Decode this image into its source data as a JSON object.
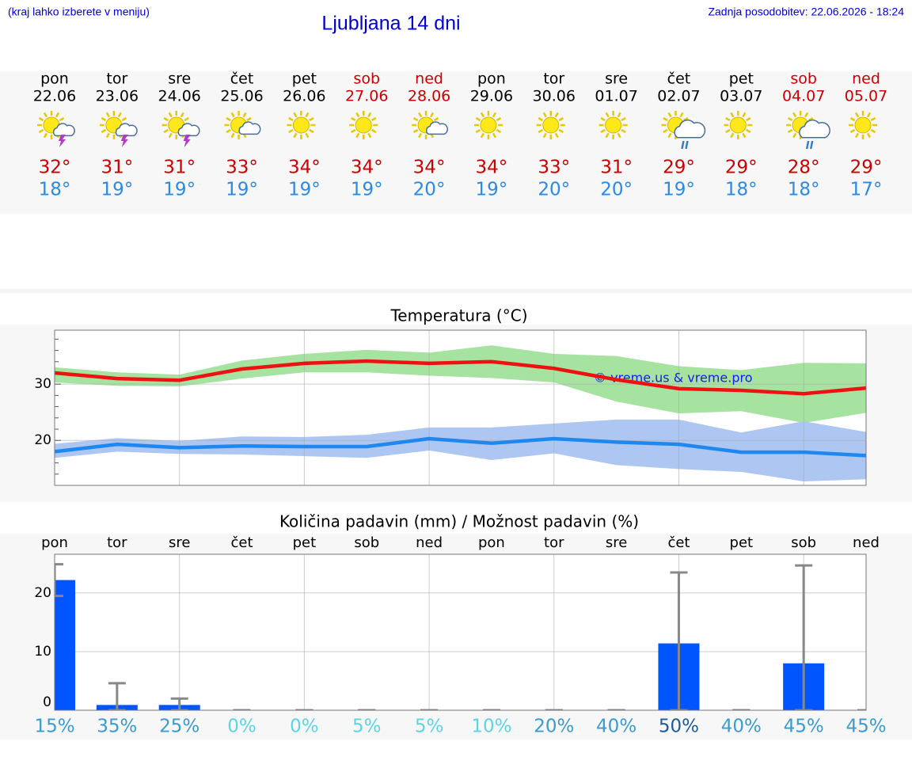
{
  "header": {
    "note": "(kraj lahko izberete v meniju)",
    "title": "Ljubljana 14 dni",
    "updated": "Zadnja posodobitev: 22.06.2026 - 18:24"
  },
  "forecast": [
    {
      "day": "pon",
      "date": "22.06",
      "icon": "sun-cloud-storm",
      "high": "32°",
      "low": "18°",
      "weekend": false
    },
    {
      "day": "tor",
      "date": "23.06",
      "icon": "sun-cloud-storm",
      "high": "31°",
      "low": "19°",
      "weekend": false
    },
    {
      "day": "sre",
      "date": "24.06",
      "icon": "sun-cloud-storm",
      "high": "31°",
      "low": "19°",
      "weekend": false
    },
    {
      "day": "čet",
      "date": "25.06",
      "icon": "sun-cloud",
      "high": "33°",
      "low": "19°",
      "weekend": false
    },
    {
      "day": "pet",
      "date": "26.06",
      "icon": "sun",
      "high": "34°",
      "low": "19°",
      "weekend": false
    },
    {
      "day": "sob",
      "date": "27.06",
      "icon": "sun",
      "high": "34°",
      "low": "19°",
      "weekend": true
    },
    {
      "day": "ned",
      "date": "28.06",
      "icon": "sun-cloud",
      "high": "34°",
      "low": "20°",
      "weekend": true
    },
    {
      "day": "pon",
      "date": "29.06",
      "icon": "sun",
      "high": "34°",
      "low": "19°",
      "weekend": false
    },
    {
      "day": "tor",
      "date": "30.06",
      "icon": "sun",
      "high": "33°",
      "low": "20°",
      "weekend": false
    },
    {
      "day": "sre",
      "date": "01.07",
      "icon": "sun",
      "high": "31°",
      "low": "20°",
      "weekend": false
    },
    {
      "day": "čet",
      "date": "02.07",
      "icon": "sun-cloud-rain",
      "high": "29°",
      "low": "19°",
      "weekend": false
    },
    {
      "day": "pet",
      "date": "03.07",
      "icon": "sun",
      "high": "29°",
      "low": "18°",
      "weekend": false
    },
    {
      "day": "sob",
      "date": "04.07",
      "icon": "sun-cloud-rain",
      "high": "28°",
      "low": "18°",
      "weekend": true
    },
    {
      "day": "ned",
      "date": "05.07",
      "icon": "sun",
      "high": "29°",
      "low": "17°",
      "weekend": true
    }
  ],
  "chart_data": [
    {
      "type": "line",
      "title": "Temperatura (°C)",
      "ylim": [
        12,
        39.6
      ],
      "yticks": [
        20,
        30
      ],
      "minor_yticks": [
        14,
        16,
        18,
        22,
        24,
        26,
        28,
        32,
        34,
        36,
        38
      ],
      "grid": true,
      "watermark": "© vreme.us & vreme.pro",
      "bands": [
        {
          "color": "#a6e3a0",
          "upper": [
            33.0,
            32.1,
            31.7,
            34.2,
            35.4,
            36.1,
            35.6,
            36.9,
            35.4,
            35.0,
            33.2,
            32.5,
            33.8,
            33.7
          ],
          "lower": [
            30.3,
            29.7,
            29.6,
            31.0,
            32.1,
            32.1,
            31.5,
            31.1,
            30.3,
            26.9,
            24.8,
            25.2,
            23.1,
            24.9
          ]
        },
        {
          "color": "#aec6f2",
          "upper": [
            19.4,
            20.4,
            19.9,
            20.7,
            20.6,
            21.0,
            22.3,
            22.3,
            23.0,
            23.7,
            23.7,
            21.4,
            23.4,
            21.5
          ],
          "lower": [
            16.9,
            18.0,
            17.6,
            17.5,
            17.2,
            16.9,
            18.2,
            16.5,
            17.7,
            15.6,
            14.9,
            14.4,
            12.7,
            13.1
          ]
        }
      ],
      "series": [
        {
          "color": "#ee1111",
          "values": [
            32.0,
            31.0,
            30.7,
            32.7,
            33.7,
            34.1,
            33.7,
            34.0,
            32.8,
            30.8,
            29.2,
            28.9,
            28.3,
            29.3
          ]
        },
        {
          "color": "#1e88f0",
          "values": [
            18.0,
            19.3,
            18.7,
            19.0,
            18.9,
            18.9,
            20.3,
            19.5,
            20.3,
            19.7,
            19.3,
            17.9,
            17.9,
            17.3
          ]
        }
      ]
    },
    {
      "type": "bar",
      "title": "Količina padavin (mm) / Možnost padavin (%)",
      "categories": [
        "pon",
        "tor",
        "sre",
        "čet",
        "pet",
        "sob",
        "ned",
        "pon",
        "tor",
        "sre",
        "čet",
        "pet",
        "sob",
        "ned"
      ],
      "ylim": [
        0,
        26.6
      ],
      "yticks": [
        0,
        10,
        20
      ],
      "grid": true,
      "series": [
        {
          "color": "#0055ff",
          "values": [
            22.2,
            0.9,
            0.9,
            0,
            0,
            0,
            0,
            0,
            0,
            0,
            11.4,
            0,
            8.0,
            0
          ],
          "error_low": [
            19.5,
            0,
            0,
            0,
            0,
            0,
            0,
            0,
            0,
            0,
            0,
            0,
            0,
            0
          ],
          "error_high": [
            24.9,
            4.6,
            2.0,
            0,
            0,
            0,
            0,
            0,
            0,
            0,
            23.5,
            0,
            24.7,
            0
          ]
        },
        {
          "values": [
            15,
            35,
            25,
            0,
            0,
            5,
            5,
            10,
            20,
            40,
            50,
            40,
            45,
            45
          ],
          "value_labels": [
            "15%",
            "35%",
            "25%",
            "0%",
            "0%",
            "5%",
            "5%",
            "10%",
            "20%",
            "40%",
            "50%",
            "40%",
            "45%",
            "45%"
          ]
        }
      ]
    }
  ]
}
